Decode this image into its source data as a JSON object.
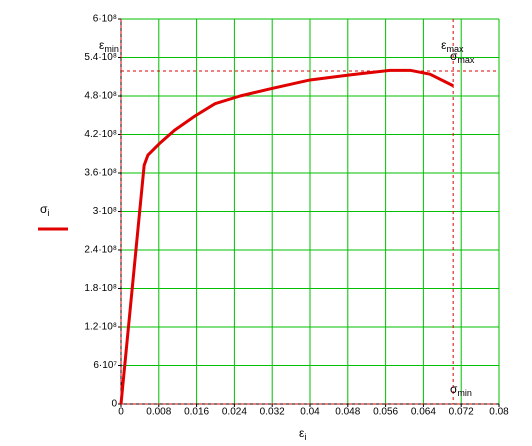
{
  "chart_data": {
    "type": "line",
    "x_label": {
      "text": "ε",
      "sub": "i"
    },
    "y_label": {
      "text": "σ",
      "sub": "i"
    },
    "x": [
      0,
      0.0049,
      0.0057,
      0.0083,
      0.0114,
      0.0157,
      0.0199,
      0.0252,
      0.0315,
      0.04,
      0.0485,
      0.0569,
      0.0612,
      0.0654,
      0.0703
    ],
    "series": [
      {
        "color": "#e00000",
        "values": [
          0,
          372000000,
          388000000,
          407000000,
          427000000,
          449000000,
          468000000,
          480000000,
          491000000,
          505000000,
          513000000,
          520000000,
          520000000,
          514000000,
          496000000
        ]
      }
    ],
    "xlim": [
      0,
      0.08
    ],
    "ylim": [
      0,
      600000000
    ],
    "xticks": [
      0,
      0.008,
      0.016,
      0.024,
      0.032,
      0.04,
      0.048,
      0.056,
      0.064,
      0.072,
      0.08
    ],
    "yticks": [
      0,
      {
        "value": 60000000,
        "label": "6·10⁷"
      },
      {
        "value": 120000000,
        "label": "1.2·10⁸"
      },
      {
        "value": 180000000,
        "label": "1.8·10⁸"
      },
      {
        "value": 240000000,
        "label": "2.4·10⁸"
      },
      {
        "value": 300000000,
        "label": "3·10⁸"
      },
      {
        "value": 360000000,
        "label": "3.6·10⁸"
      },
      {
        "value": 420000000,
        "label": "4.2·10⁸"
      },
      {
        "value": 480000000,
        "label": "4.8·10⁸"
      },
      {
        "value": 540000000,
        "label": "5.4·10⁸"
      },
      {
        "value": 600000000,
        "label": "6·10⁸"
      }
    ],
    "grid": true,
    "grid_color": "#00c000",
    "marker_color": "#e00000",
    "x_markers": [
      {
        "value": 0,
        "label": "ε",
        "sub": "min"
      },
      {
        "value": 0.0703,
        "label": "ε",
        "sub": "max"
      }
    ],
    "y_markers": [
      {
        "value": 519000000,
        "label": "σ",
        "sub": "max"
      },
      {
        "value": 0,
        "label": "σ",
        "sub": "min"
      }
    ]
  }
}
